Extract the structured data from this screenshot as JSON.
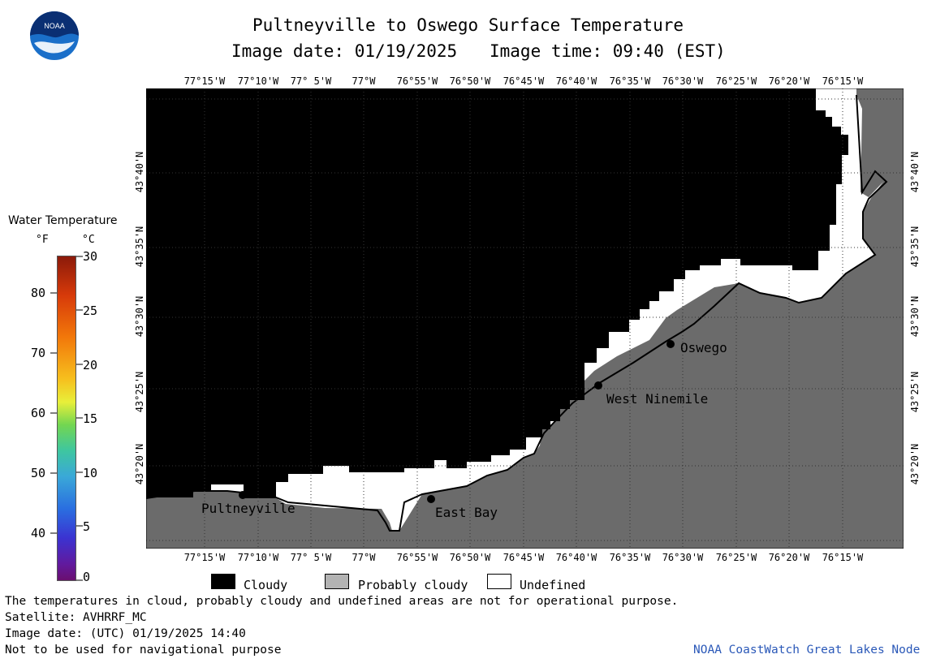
{
  "header": {
    "title": "Pultneyville to Oswego Surface Temperature",
    "subtitle_date": "Image date: 01/19/2025",
    "subtitle_time": "Image time: 09:40 (EST)"
  },
  "logo": {
    "text": "NOAA"
  },
  "map": {
    "lon_labels": [
      "77°15'W",
      "77°10'W",
      "77° 5'W",
      "77°W",
      "76°55'W",
      "76°50'W",
      "76°45'W",
      "76°40'W",
      "76°35'W",
      "76°30'W",
      "76°25'W",
      "76°20'W",
      "76°15'W"
    ],
    "lat_labels": [
      "43°40'N",
      "43°35'N",
      "43°30'N",
      "43°25'N",
      "43°20'N"
    ],
    "places": [
      {
        "name": "Pultneyville"
      },
      {
        "name": "East Bay"
      },
      {
        "name": "West Ninemile"
      },
      {
        "name": "Oswego"
      }
    ],
    "colors": {
      "cloudy": "#000000",
      "land": "#6b6b6b",
      "undefined": "#ffffff"
    }
  },
  "scale": {
    "title": "Water Temperature",
    "unit_f": "°F",
    "unit_c": "°C",
    "f_ticks": [
      "80",
      "70",
      "60",
      "50",
      "40"
    ],
    "c_ticks": [
      "30",
      "25",
      "20",
      "15",
      "10",
      "5",
      "0"
    ]
  },
  "legend": {
    "cloudy": "Cloudy",
    "probably_cloudy": "Probably cloudy",
    "undefined": "Undefined"
  },
  "footer": {
    "line1": "The temperatures in cloud, probably cloudy and undefined areas are not for operational purpose.",
    "line2": "Satellite: AVHRRF_MC",
    "line3": "Image date: (UTC) 01/19/2025  14:40",
    "line4": "Not to be used for navigational purpose",
    "credit": "NOAA CoastWatch Great Lakes Node"
  }
}
